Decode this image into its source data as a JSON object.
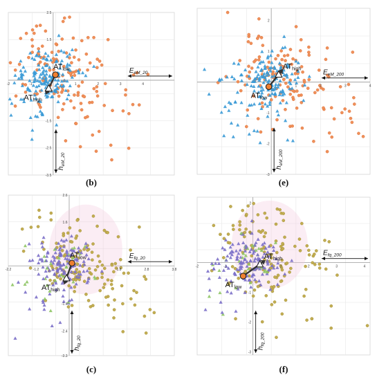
{
  "colors": {
    "orange": "#f0905a",
    "orange_stroke": "#d86a2e",
    "blue": "#3a9ad6",
    "purple": "#7b6fc8",
    "olive": "#c2ad52",
    "olive_stroke": "#9e8a30",
    "green": "#8fc565",
    "pink": "#f3cbe0",
    "centroid_fill": "#f08030",
    "arrow": "#333333"
  },
  "chart_data": [
    {
      "panel": "b",
      "label": "(b)",
      "type": "scatter",
      "palette": "orange-blue",
      "xlim": [
        -2,
        5.4
      ],
      "ylim": [
        -3.5,
        2.5
      ],
      "x_ticks": [
        "-2",
        "-1",
        "1",
        "2",
        "3",
        "4"
      ],
      "y_ticks": [
        "2.5",
        "1.5",
        "-1.5",
        "-2.5",
        "-3.5"
      ],
      "axis_h": {
        "main": "E",
        "sub": "eM_20"
      },
      "axis_v": {
        "main": "h",
        "sub": "eM_20"
      },
      "at_low": {
        "main": "AT",
        "sub": "low"
      },
      "at_high": {
        "main": "AT",
        "sub": "high"
      },
      "centroid_low": [
        0.1,
        0.2
      ],
      "centroid_high": [
        -0.2,
        -0.3
      ],
      "seed": 11
    },
    {
      "panel": "e",
      "label": "(e)",
      "type": "scatter",
      "palette": "orange-blue",
      "xlim": [
        -3,
        4
      ],
      "ylim": [
        -3,
        2.4
      ],
      "x_ticks": [
        "1",
        "2",
        "3",
        "4"
      ],
      "y_ticks": [
        "2",
        "1",
        "-1",
        "-2",
        "-3"
      ],
      "axis_h": {
        "main": "E",
        "sub": "eM_200"
      },
      "axis_v": {
        "main": "h",
        "sub": "eM_200"
      },
      "at_low": {
        "main": "AT",
        "sub": "low"
      },
      "at_high": {
        "main": "AT",
        "sub": "high"
      },
      "centroid_low": [
        -0.1,
        -0.15
      ],
      "centroid_high": [
        0.3,
        0.25
      ],
      "seed": 23
    },
    {
      "panel": "c",
      "label": "(c)",
      "type": "scatter",
      "palette": "olive-purple",
      "xlim": [
        -2.2,
        3.8
      ],
      "ylim": [
        -3.3,
        2.6
      ],
      "x_ticks": [
        "-2.2",
        "-1.2",
        "1.8",
        "2.8",
        "3.8"
      ],
      "y_ticks": [
        "2.6",
        "1.6",
        "-1.4",
        "-2.4",
        "-3.3"
      ],
      "axis_h": {
        "main": "E",
        "sub": "fq_20"
      },
      "axis_v": {
        "main": "h",
        "sub": "fq_20"
      },
      "at_low": {
        "main": "AT",
        "sub": "low"
      },
      "at_high": {
        "main": "AT",
        "sub": "high"
      },
      "centroid_low": [
        0.1,
        0.1
      ],
      "centroid_high": [
        -0.1,
        -0.45
      ],
      "seed": 37
    },
    {
      "panel": "f",
      "label": "(f)",
      "type": "scatter",
      "palette": "olive-purple",
      "xlim": [
        -2,
        4.2
      ],
      "ylim": [
        -3.1,
        2.2
      ],
      "x_ticks": [
        "-2",
        "-1",
        "1",
        "2",
        "3",
        "4"
      ],
      "y_ticks": [
        "2",
        "1",
        "-1",
        "-2",
        "-3"
      ],
      "axis_h": {
        "main": "E",
        "sub": "fq_200"
      },
      "axis_v": {
        "main": "h",
        "sub": "fq_200"
      },
      "at_low": {
        "main": "AT",
        "sub": "low"
      },
      "at_high": {
        "main": "AT",
        "sub": "high"
      },
      "centroid_low": [
        -0.35,
        -0.45
      ],
      "centroid_high": [
        0.25,
        -0.05
      ],
      "seed": 51
    }
  ]
}
